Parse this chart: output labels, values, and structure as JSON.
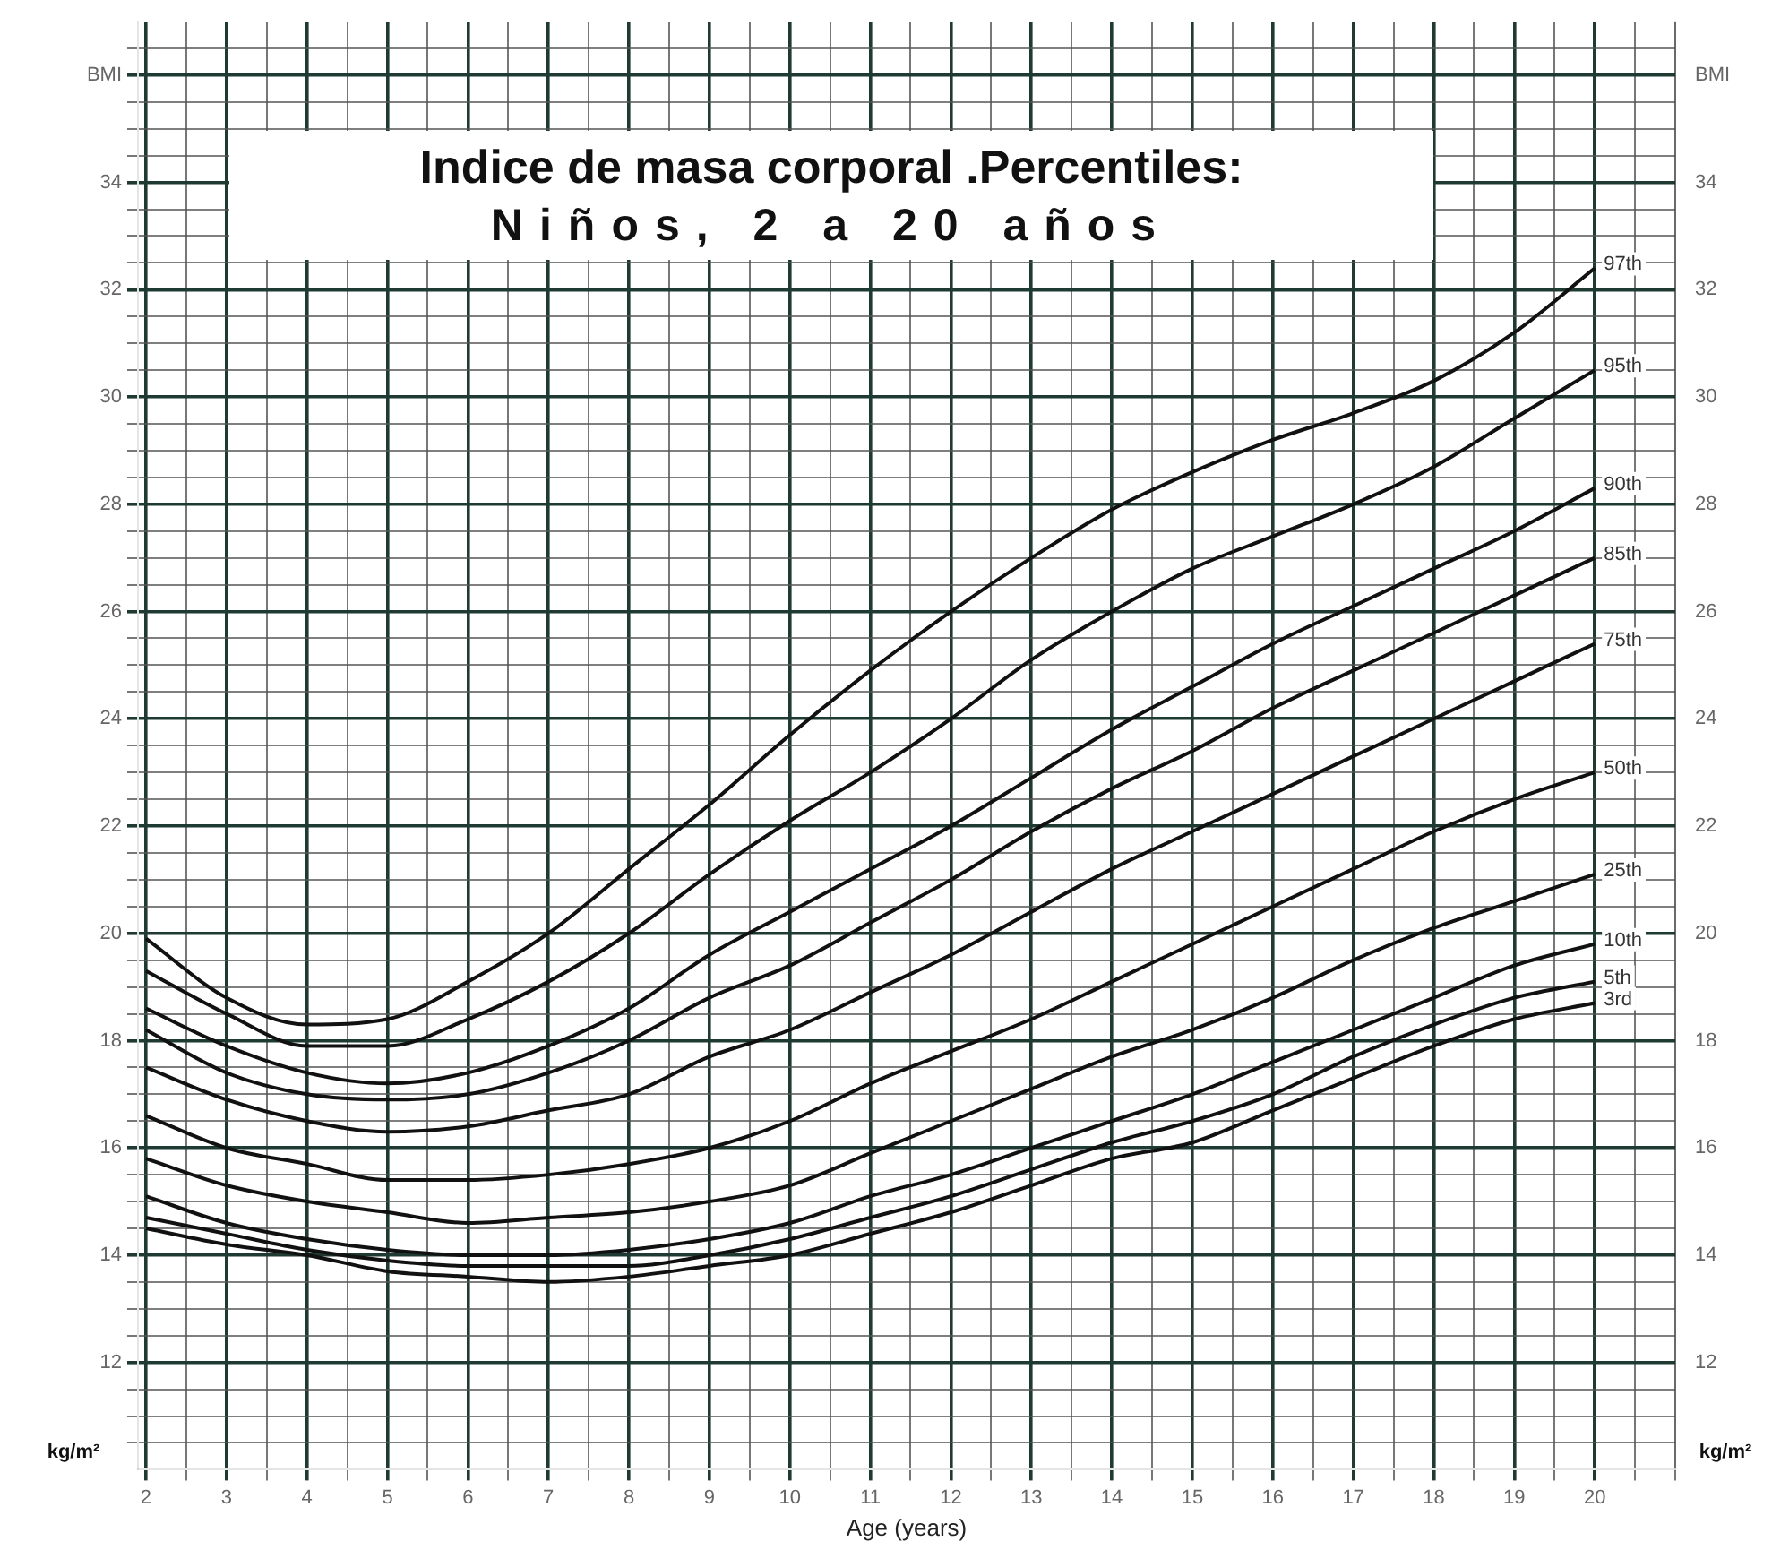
{
  "chart_data": {
    "type": "line",
    "title": "Indice de masa corporal .Percentiles:",
    "subtitle": "Niños, 2 a 20 años",
    "xlabel": "Age (years)",
    "ylabel": "kg/m²",
    "y2label": "kg/m²",
    "x": [
      2,
      3,
      4,
      5,
      6,
      7,
      8,
      9,
      10,
      11,
      12,
      13,
      14,
      15,
      16,
      17,
      18,
      19,
      20
    ],
    "series": [
      {
        "name": "97th",
        "color": "#111111",
        "values": [
          19.9,
          18.8,
          18.3,
          18.4,
          19.1,
          20.0,
          21.2,
          22.4,
          23.7,
          24.9,
          26.0,
          27.0,
          27.9,
          28.6,
          29.2,
          29.7,
          30.3,
          31.2,
          32.4
        ]
      },
      {
        "name": "95th",
        "color": "#111111",
        "values": [
          19.3,
          18.5,
          17.9,
          17.9,
          18.4,
          19.1,
          20.0,
          21.1,
          22.1,
          23.0,
          24.0,
          25.1,
          26.0,
          26.8,
          27.4,
          28.0,
          28.7,
          29.6,
          30.5
        ]
      },
      {
        "name": "90th",
        "color": "#111111",
        "values": [
          18.6,
          17.9,
          17.4,
          17.2,
          17.4,
          17.9,
          18.6,
          19.6,
          20.4,
          21.2,
          22.0,
          22.9,
          23.8,
          24.6,
          25.4,
          26.1,
          26.8,
          27.5,
          28.3
        ]
      },
      {
        "name": "85th",
        "color": "#111111",
        "values": [
          18.2,
          17.4,
          17.0,
          16.9,
          17.0,
          17.4,
          18.0,
          18.8,
          19.4,
          20.2,
          21.0,
          21.9,
          22.7,
          23.4,
          24.2,
          24.9,
          25.6,
          26.3,
          27.0
        ]
      },
      {
        "name": "75th",
        "color": "#111111",
        "values": [
          17.5,
          16.9,
          16.5,
          16.3,
          16.4,
          16.7,
          17.0,
          17.7,
          18.2,
          18.9,
          19.6,
          20.4,
          21.2,
          21.9,
          22.6,
          23.3,
          24.0,
          24.7,
          25.4
        ]
      },
      {
        "name": "50th",
        "color": "#111111",
        "values": [
          16.6,
          16.0,
          15.7,
          15.4,
          15.4,
          15.5,
          15.7,
          16.0,
          16.5,
          17.2,
          17.8,
          18.4,
          19.1,
          19.8,
          20.5,
          21.2,
          21.9,
          22.5,
          23.0
        ]
      },
      {
        "name": "25th",
        "color": "#111111",
        "values": [
          15.8,
          15.3,
          15.0,
          14.8,
          14.6,
          14.7,
          14.8,
          15.0,
          15.3,
          15.9,
          16.5,
          17.1,
          17.7,
          18.2,
          18.8,
          19.5,
          20.1,
          20.6,
          21.1
        ]
      },
      {
        "name": "10th",
        "color": "#111111",
        "values": [
          15.1,
          14.6,
          14.3,
          14.1,
          14.0,
          14.0,
          14.1,
          14.3,
          14.6,
          15.1,
          15.5,
          16.0,
          16.5,
          17.0,
          17.6,
          18.2,
          18.8,
          19.4,
          19.8
        ]
      },
      {
        "name": "5th",
        "color": "#111111",
        "values": [
          14.7,
          14.4,
          14.1,
          13.9,
          13.8,
          13.8,
          13.8,
          14.0,
          14.3,
          14.7,
          15.1,
          15.6,
          16.1,
          16.5,
          17.0,
          17.7,
          18.3,
          18.8,
          19.1
        ]
      },
      {
        "name": "3rd",
        "color": "#111111",
        "values": [
          14.5,
          14.2,
          14.0,
          13.7,
          13.6,
          13.5,
          13.6,
          13.8,
          14.0,
          14.4,
          14.8,
          15.3,
          15.8,
          16.1,
          16.7,
          17.3,
          17.9,
          18.4,
          18.7
        ]
      }
    ],
    "xlim": [
      1.9,
      21
    ],
    "xticks": [
      2,
      {
        "value": 2.5,
        "label": null
      },
      3,
      {
        "value": 3.5,
        "label": null
      },
      4,
      {
        "value": 4.5,
        "label": null
      },
      5,
      {
        "value": 5.5,
        "label": null
      },
      6,
      {
        "value": 6.5,
        "label": null
      },
      7,
      {
        "value": 7.5,
        "label": null
      },
      8,
      {
        "value": 8.5,
        "label": null
      },
      9,
      {
        "value": 9.5,
        "label": null
      },
      10,
      {
        "value": 10.5,
        "label": null
      },
      11,
      {
        "value": 11.5,
        "label": null
      },
      12,
      {
        "value": 12.5,
        "label": null
      },
      13,
      {
        "value": 13.5,
        "label": null
      },
      14,
      {
        "value": 14.5,
        "label": null
      },
      15,
      {
        "value": 15.5,
        "label": null
      },
      16,
      {
        "value": 16.5,
        "label": null
      },
      17,
      {
        "value": 17.5,
        "label": null
      },
      18,
      {
        "value": 18.5,
        "label": null
      },
      19,
      {
        "value": 19.5,
        "label": null
      },
      20,
      {
        "value": 20.5,
        "label": null
      },
      {
        "value": 21,
        "label": null
      }
    ],
    "ylim": [
      10,
      37
    ],
    "yticks": [
      {
        "value": 10.5,
        "label": null
      },
      {
        "value": 11,
        "label": null
      },
      {
        "value": 11.5,
        "label": null
      },
      12,
      {
        "value": 12.5,
        "label": null
      },
      {
        "value": 13,
        "label": null
      },
      {
        "value": 13.5,
        "label": null
      },
      14,
      {
        "value": 14.5,
        "label": null
      },
      {
        "value": 15,
        "label": null
      },
      {
        "value": 15.5,
        "label": null
      },
      16,
      {
        "value": 16.5,
        "label": null
      },
      {
        "value": 17,
        "label": null
      },
      {
        "value": 17.5,
        "label": null
      },
      18,
      {
        "value": 18.5,
        "label": null
      },
      {
        "value": 19,
        "label": null
      },
      {
        "value": 19.5,
        "label": null
      },
      20,
      {
        "value": 20.5,
        "label": null
      },
      {
        "value": 21,
        "label": null
      },
      {
        "value": 21.5,
        "label": null
      },
      22,
      {
        "value": 22.5,
        "label": null
      },
      {
        "value": 23,
        "label": null
      },
      {
        "value": 23.5,
        "label": null
      },
      24,
      {
        "value": 24.5,
        "label": null
      },
      {
        "value": 25,
        "label": null
      },
      {
        "value": 25.5,
        "label": null
      },
      26,
      {
        "value": 26.5,
        "label": null
      },
      {
        "value": 27,
        "label": null
      },
      {
        "value": 27.5,
        "label": null
      },
      28,
      {
        "value": 28.5,
        "label": null
      },
      {
        "value": 29,
        "label": null
      },
      {
        "value": 29.5,
        "label": null
      },
      30,
      {
        "value": 30.5,
        "label": null
      },
      {
        "value": 31,
        "label": null
      },
      {
        "value": 31.5,
        "label": null
      },
      32,
      {
        "value": 32.5,
        "label": null
      },
      {
        "value": 33,
        "label": null
      },
      {
        "value": 33.5,
        "label": null
      },
      34,
      {
        "value": 34.5,
        "label": null
      },
      {
        "value": 35,
        "label": null
      },
      {
        "value": 35.5,
        "label": null
      },
      {
        "value": 36,
        "label": "BMI"
      },
      {
        "value": 36.5,
        "label": null
      }
    ],
    "y2lim": [
      10,
      37
    ],
    "y2ticks": [
      12,
      14,
      16,
      18,
      20,
      22,
      24,
      26,
      28,
      30,
      32,
      34,
      {
        "value": 36,
        "label": "BMI"
      }
    ],
    "grid": true,
    "legend": false,
    "marker": "none",
    "line_style": "solid"
  }
}
